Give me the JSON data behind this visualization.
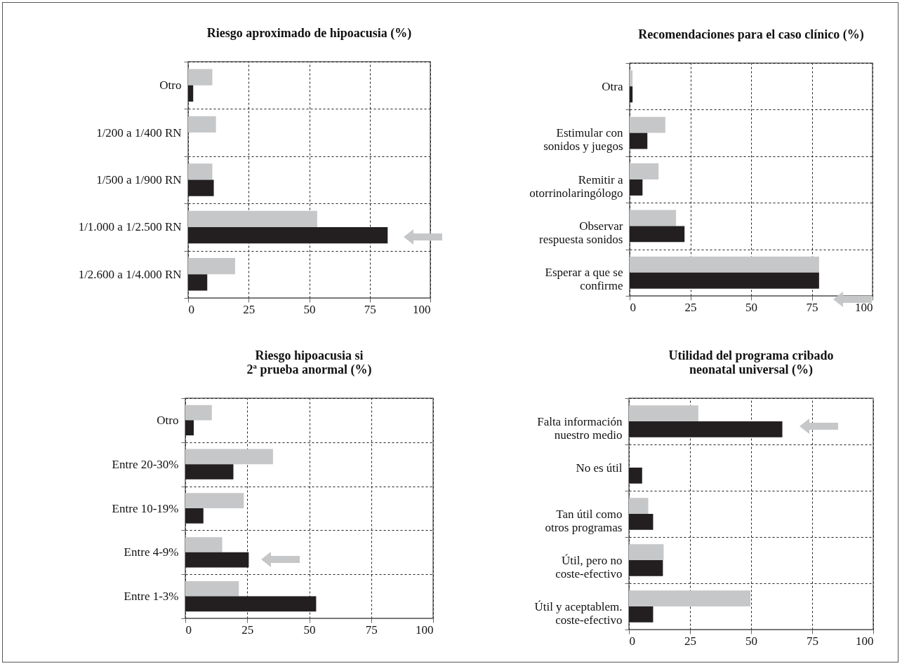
{
  "chart_data": [
    {
      "type": "bar",
      "orientation": "horizontal",
      "title": "Riesgo aproximado de hipoacusia (%)",
      "categories": [
        "Otro",
        "1/200 a 1/400 RN",
        "1/500 a 1/900 RN",
        "1/1.000 a 1/2.500 RN",
        "1/2.600 a 1/4.000 RN"
      ],
      "series": [
        {
          "color": "#c6c7c9",
          "values": [
            10,
            11.5,
            10,
            53.3,
            19.4
          ]
        },
        {
          "color": "#231f20",
          "values": [
            2.1,
            null,
            10.6,
            82.4,
            7.9
          ]
        }
      ],
      "xlim": [
        0,
        100
      ],
      "xticks": [
        0,
        25,
        50,
        75,
        100
      ],
      "grid": true
    },
    {
      "type": "bar",
      "orientation": "horizontal",
      "title": "Recomendaciones para el caso clínico (%)",
      "categories": [
        "Otra",
        "Estimular con\nsonidos y juegos",
        "Remitir a\notorrinolaringólogo",
        "Observar\nrespuesta sonidos",
        "Esperar a que se\nconfirme"
      ],
      "series": [
        {
          "color": "#c6c7c9",
          "values": [
            1.2,
            14.7,
            11.9,
            19.1,
            78
          ]
        },
        {
          "color": "#231f20",
          "values": [
            1.2,
            7.3,
            5.3,
            22.6,
            78
          ]
        }
      ],
      "xlim": [
        0,
        100
      ],
      "xticks": [
        0,
        25,
        50,
        75,
        100
      ],
      "grid": true
    },
    {
      "type": "bar",
      "orientation": "horizontal",
      "title": "Riesgo hipoacusia si\n2ª prueba anormal (%)",
      "categories": [
        "Otro",
        "Entre 20-30%",
        "Entre 10-19%",
        "Entre 4-9%",
        "Entre 1-3%"
      ],
      "series": [
        {
          "color": "#c6c7c9",
          "values": [
            10.7,
            35.4,
            23.6,
            14.9,
            21.6
          ]
        },
        {
          "color": "#231f20",
          "values": [
            3.4,
            19.4,
            7.3,
            25.6,
            52.8
          ]
        }
      ],
      "xlim": [
        0,
        100
      ],
      "xticks": [
        0,
        25,
        50,
        75,
        100
      ],
      "grid": true
    },
    {
      "type": "bar",
      "orientation": "horizontal",
      "title": "Utilidad del programa cribado\nneonatal universal (%)",
      "categories": [
        "Falta información\nnuestro medio",
        "No es útil",
        "Tan útil como\notros programas",
        "Útil, pero no\ncoste-efectivo",
        "Útil y aceptablem.\ncoste-efectivo"
      ],
      "series": [
        {
          "color": "#c6c7c9",
          "values": [
            28.4,
            null,
            7.9,
            14.2,
            49.7
          ]
        },
        {
          "color": "#231f20",
          "values": [
            62.8,
            5.4,
            9.9,
            13.9,
            9.9
          ]
        }
      ],
      "xlim": [
        0,
        100
      ],
      "xticks": [
        0,
        25,
        50,
        75,
        100
      ],
      "grid": true
    }
  ]
}
